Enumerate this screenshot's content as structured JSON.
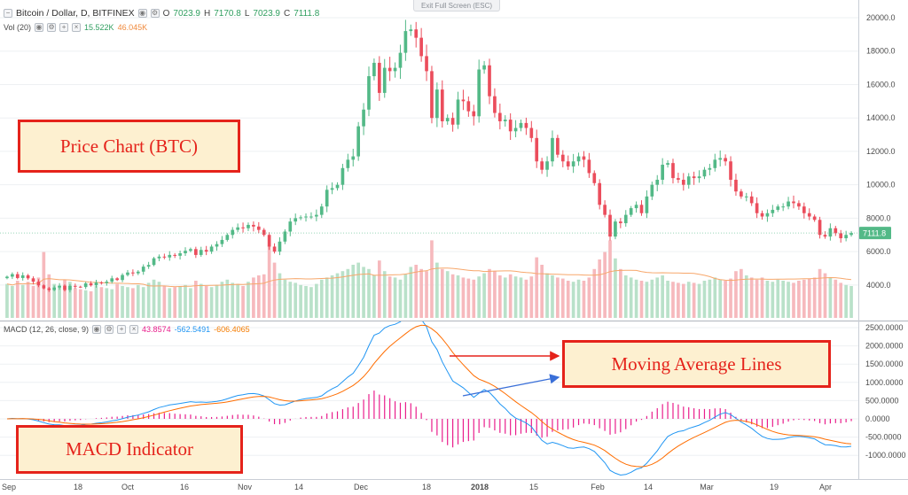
{
  "header": {
    "symbol": "Bitcoin / Dollar, D, BITFINEX",
    "o_label": "O",
    "o_value": "7023.9",
    "h_label": "H",
    "h_value": "7170.8",
    "l_label": "L",
    "l_value": "7023.9",
    "c_label": "C",
    "c_value": "7111.8",
    "exit_fullscreen": "Exit Full Screen (ESC)"
  },
  "volume_legend": {
    "label": "Vol (20)",
    "value1": "15.522K",
    "value2": "46.045K"
  },
  "macd_legend": {
    "label": "MACD (12, 26, close, 9)",
    "hist": "43.8574",
    "macd": "-562.5491",
    "signal": "-606.4065"
  },
  "price_axis": {
    "ticks": [
      "20000.0",
      "18000.0",
      "16000.0",
      "14000.0",
      "12000.0",
      "10000.0",
      "8000.0",
      "6000.0",
      "4000.0"
    ],
    "last_price": "7111.8"
  },
  "macd_axis": {
    "ticks": [
      "2500.0000",
      "2000.0000",
      "1500.0000",
      "1000.0000",
      "500.0000",
      "0.0000",
      "-500.0000",
      "-1000.0000"
    ]
  },
  "time_axis": [
    {
      "label": "Sep",
      "bold": false
    },
    {
      "label": "18",
      "bold": false
    },
    {
      "label": "Oct",
      "bold": false
    },
    {
      "label": "16",
      "bold": false
    },
    {
      "label": "Nov",
      "bold": false
    },
    {
      "label": "14",
      "bold": false
    },
    {
      "label": "Dec",
      "bold": false
    },
    {
      "label": "18",
      "bold": false
    },
    {
      "label": "2018",
      "bold": true
    },
    {
      "label": "15",
      "bold": false
    },
    {
      "label": "Feb",
      "bold": false
    },
    {
      "label": "14",
      "bold": false
    },
    {
      "label": "Mar",
      "bold": false
    },
    {
      "label": "19",
      "bold": false
    },
    {
      "label": "Apr",
      "bold": false
    }
  ],
  "annotations": {
    "price_chart": "Price Chart (BTC)",
    "moving_average": "Moving Average Lines",
    "macd_indicator": "MACD Indicator"
  },
  "colors": {
    "up": "#53b987",
    "down": "#eb4d5c",
    "up_vol": "#b9e1c9",
    "down_vol": "#f6b9bd",
    "macd_line": "#2196f3",
    "signal_line": "#ff6d00",
    "histogram": "#e91e8c",
    "volume_ma": "#f7a76b",
    "annotation": "#e5231b",
    "arrow_red": "#e5231b",
    "arrow_blue": "#3a6fd8"
  },
  "chart_data": [
    {
      "type": "candlestick",
      "title": "Bitcoin / Dollar, D, BITFINEX",
      "ylim": [
        2200,
        21000
      ],
      "closes": [
        4500,
        4650,
        4420,
        4580,
        4400,
        4200,
        3980,
        3800,
        3700,
        3850,
        3960,
        3700,
        3950,
        3900,
        3880,
        4100,
        3980,
        4150,
        4120,
        4200,
        4400,
        4300,
        4600,
        4750,
        4700,
        4800,
        5100,
        5200,
        5600,
        5700,
        5650,
        5800,
        5750,
        5900,
        6050,
        6150,
        5800,
        6100,
        6000,
        6300,
        6450,
        6700,
        7000,
        7300,
        7450,
        7400,
        7600,
        7500,
        7300,
        7000,
        6300,
        6000,
        6600,
        7200,
        7800,
        8000,
        8050,
        8100,
        8100,
        8200,
        8700,
        9700,
        9800,
        10000,
        11000,
        11500,
        11700,
        13500,
        14500,
        16500,
        17300,
        15500,
        17000,
        16800,
        17000,
        17900,
        19200,
        19300,
        18800,
        17700,
        16800,
        14000,
        15700,
        13800,
        14000,
        13600,
        15100,
        15000,
        14400,
        14100,
        16900,
        17150,
        15300,
        14300,
        13800,
        13900,
        13200,
        13400,
        13700,
        13400,
        12800,
        11400,
        10900,
        11400,
        12800,
        11800,
        11400,
        11100,
        11400,
        11700,
        11500,
        10700,
        10100,
        8800,
        8200,
        6900,
        7800,
        7700,
        8200,
        8600,
        8800,
        8300,
        9300,
        10000,
        10300,
        11200,
        11300,
        10400,
        10300,
        10000,
        10500,
        10400,
        10500,
        10900,
        11000,
        11500,
        11600,
        11400,
        10300,
        9600,
        9300,
        9300,
        8900,
        8300,
        8100,
        8300,
        8500,
        8700,
        8700,
        9000,
        8900,
        8700,
        8300,
        8100,
        7900,
        7000,
        6900,
        7400,
        7100,
        6800,
        7000,
        7111.8
      ],
      "volume": [
        3.2,
        3.0,
        3.5,
        3.1,
        3.4,
        3.0,
        3.8,
        6.2,
        4.1,
        3.2,
        3.0,
        3.6,
        3.4,
        2.8,
        2.7,
        2.6,
        2.5,
        3.0,
        2.9,
        2.8,
        2.7,
        3.2,
        3.0,
        2.9,
        2.8,
        3.1,
        2.9,
        3.3,
        3.6,
        3.4,
        3.0,
        2.8,
        2.9,
        3.0,
        3.1,
        2.8,
        3.5,
        3.2,
        3.0,
        2.9,
        3.1,
        3.4,
        3.6,
        3.3,
        3.2,
        3.0,
        3.4,
        3.8,
        4.0,
        4.1,
        6.8,
        5.2,
        4.2,
        3.6,
        3.4,
        3.3,
        3.1,
        3.0,
        2.9,
        3.2,
        3.6,
        3.8,
        4.0,
        4.2,
        4.4,
        4.6,
        5.0,
        5.2,
        4.8,
        4.6,
        4.0,
        5.4,
        4.4,
        3.9,
        3.8,
        3.6,
        4.1,
        4.8,
        5.0,
        4.6,
        4.4,
        7.3,
        5.2,
        4.6,
        4.4,
        4.1,
        4.0,
        3.8,
        3.7,
        3.6,
        3.9,
        4.2,
        4.6,
        4.4,
        4.0,
        3.8,
        4.1,
        3.9,
        3.8,
        3.6,
        3.9,
        5.7,
        5.0,
        4.2,
        4.0,
        3.8,
        3.7,
        3.5,
        3.4,
        3.6,
        3.5,
        3.8,
        4.6,
        5.5,
        6.2,
        7.3,
        5.6,
        4.6,
        4.0,
        3.8,
        3.6,
        3.5,
        3.4,
        3.6,
        3.8,
        4.0,
        3.5,
        3.4,
        3.3,
        3.2,
        3.4,
        3.3,
        3.2,
        3.5,
        3.6,
        3.8,
        3.6,
        3.5,
        3.7,
        4.4,
        4.6,
        4.0,
        3.8,
        3.6,
        3.8,
        3.5,
        3.4,
        3.6,
        3.5,
        3.4,
        3.3,
        3.5,
        3.6,
        3.7,
        3.8,
        4.6,
        4.2,
        3.8,
        3.6,
        3.3,
        3.1,
        3.0
      ],
      "ylabel": "",
      "xlabel": ""
    },
    {
      "type": "line",
      "title": "MACD (12, 26, close, 9)",
      "ylim": [
        -1400,
        2700
      ],
      "series": [
        {
          "name": "MACD"
        },
        {
          "name": "Signal"
        },
        {
          "name": "Histogram"
        }
      ]
    }
  ]
}
